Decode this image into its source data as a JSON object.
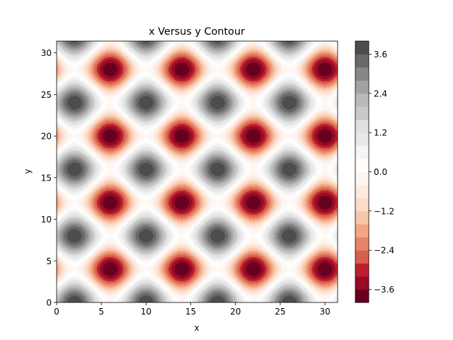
{
  "chart_data": {
    "type": "heatmap",
    "subtype": "filled-contour",
    "title": "x Versus y Contour",
    "xlabel": "x",
    "ylabel": "y",
    "xlim": [
      0,
      31.4159
    ],
    "ylim": [
      0,
      31.4159
    ],
    "xticks": [
      0,
      5,
      10,
      15,
      20,
      25,
      30
    ],
    "yticks": [
      0,
      5,
      10,
      15,
      20,
      25,
      30
    ],
    "colormap": "RdGy",
    "grid": false,
    "legend": "colorbar-right",
    "z_function": "2*sin(pi*x/2) + 2*cos(pi*y/2)",
    "z_period": {
      "x": 4,
      "y": 4
    },
    "colorbar": {
      "levels": [
        -4.0,
        -3.6,
        -3.2,
        -2.8,
        -2.4,
        -2.0,
        -1.6,
        -1.2,
        -0.8,
        -0.4,
        0.0,
        0.4,
        0.8,
        1.2,
        1.6,
        2.0,
        2.4,
        2.8,
        3.2,
        3.6,
        4.0
      ],
      "ticks": [
        -3.6,
        -2.4,
        -1.2,
        0.0,
        1.2,
        2.4,
        3.6
      ],
      "tick_labels": [
        "−3.6",
        "−2.4",
        "−1.2",
        "0.0",
        "1.2",
        "2.4",
        "3.6"
      ],
      "colors": [
        "#67001f",
        "#960b25",
        "#bd1e2e",
        "#d6604d",
        "#e58368",
        "#f4a582",
        "#f8c6ad",
        "#fddbc7",
        "#fcebe0",
        "#fdf6f2",
        "#fffefd",
        "#f5f5f5",
        "#e9e9e9",
        "#e0e0e0",
        "#c9c9c9",
        "#bababa",
        "#a2a2a2",
        "#878787",
        "#6a6a6a",
        "#4d4d4d",
        "#1a1a1a"
      ]
    }
  }
}
